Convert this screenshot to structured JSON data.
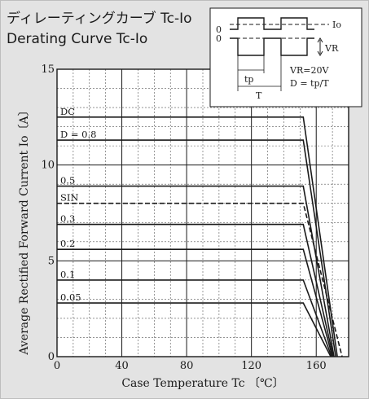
{
  "colors": {
    "panel_bg": "#e3e3e3",
    "plot_bg": "#ffffff",
    "frame": "#1a1a1a",
    "grid": "#555555",
    "curve": "#1a1a1a"
  },
  "header": {
    "title_jp": "ディレーティングカーブ Tc-Io",
    "title_en": "Derating Curve Tc-Io"
  },
  "legend": {
    "zero_top": "0",
    "zero_bottom": "0",
    "io_label": "Io",
    "vr_label": "VR",
    "tp_label": "tp",
    "t_label": "T",
    "vr_value": "VR=20V",
    "duty_formula": "D = tp/T"
  },
  "chart_data": {
    "type": "line",
    "xlabel": "Case Temperature Tc 〔℃〕",
    "ylabel": "Average Rectified Forward Current Io〔A〕",
    "xlim": [
      0,
      180
    ],
    "ylim": [
      0,
      15
    ],
    "x_ticks": [
      0,
      40,
      80,
      120,
      160
    ],
    "y_ticks": [
      0,
      5,
      10,
      15
    ],
    "grid": true,
    "series": [
      {
        "name": "DC",
        "style": "solid",
        "points": [
          [
            0,
            12.5
          ],
          [
            152,
            12.5
          ],
          [
            173,
            0
          ]
        ]
      },
      {
        "name": "D = 0.8",
        "style": "solid",
        "points": [
          [
            0,
            11.3
          ],
          [
            152,
            11.3
          ],
          [
            172,
            0
          ]
        ]
      },
      {
        "name": "0.5",
        "style": "solid",
        "points": [
          [
            0,
            8.9
          ],
          [
            152,
            8.9
          ],
          [
            171,
            0
          ]
        ]
      },
      {
        "name": "SIN",
        "style": "dashed",
        "points": [
          [
            0,
            8.0
          ],
          [
            152,
            8.0
          ],
          [
            176,
            0
          ]
        ]
      },
      {
        "name": "0.3",
        "style": "solid",
        "points": [
          [
            0,
            6.9
          ],
          [
            152,
            6.9
          ],
          [
            170.5,
            0
          ]
        ]
      },
      {
        "name": "0.2",
        "style": "solid",
        "points": [
          [
            0,
            5.6
          ],
          [
            152,
            5.6
          ],
          [
            170,
            0
          ]
        ]
      },
      {
        "name": "0.1",
        "style": "solid",
        "points": [
          [
            0,
            4.0
          ],
          [
            152,
            4.0
          ],
          [
            169.5,
            0
          ]
        ]
      },
      {
        "name": "0.05",
        "style": "solid",
        "points": [
          [
            0,
            2.8
          ],
          [
            152,
            2.8
          ],
          [
            169,
            0
          ]
        ]
      }
    ]
  }
}
